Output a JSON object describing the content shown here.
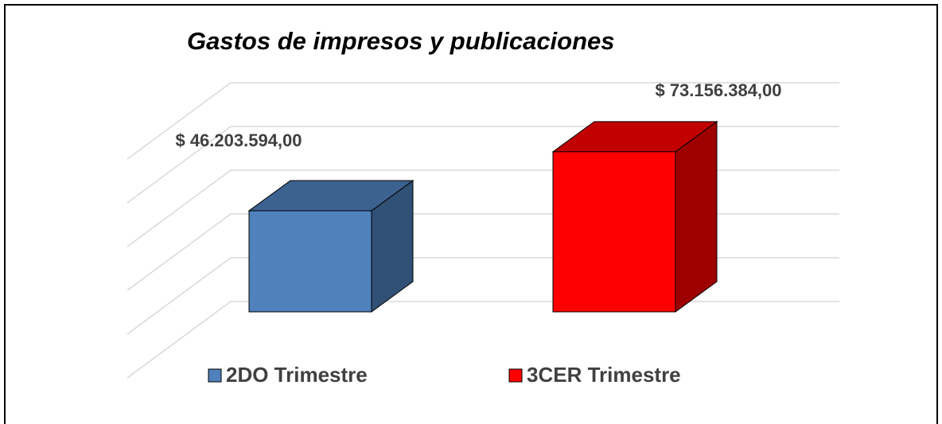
{
  "chart_data": {
    "type": "bar3d",
    "title": "Gastos de impresos y publicaciones",
    "series": [
      {
        "name": "2DO Trimestre",
        "color": "#4f81bd",
        "values": [
          46203594
        ],
        "value_labels": [
          "$ 46.203.594,00"
        ]
      },
      {
        "name": "3CER Trimestre",
        "color": "#ff0000",
        "values": [
          73156384
        ],
        "value_labels": [
          "$ 73.156.384,00"
        ]
      }
    ],
    "ylim": [
      0,
      100000000
    ],
    "yticks": [
      0,
      20000000,
      40000000,
      60000000,
      80000000,
      100000000
    ],
    "grid": true
  }
}
